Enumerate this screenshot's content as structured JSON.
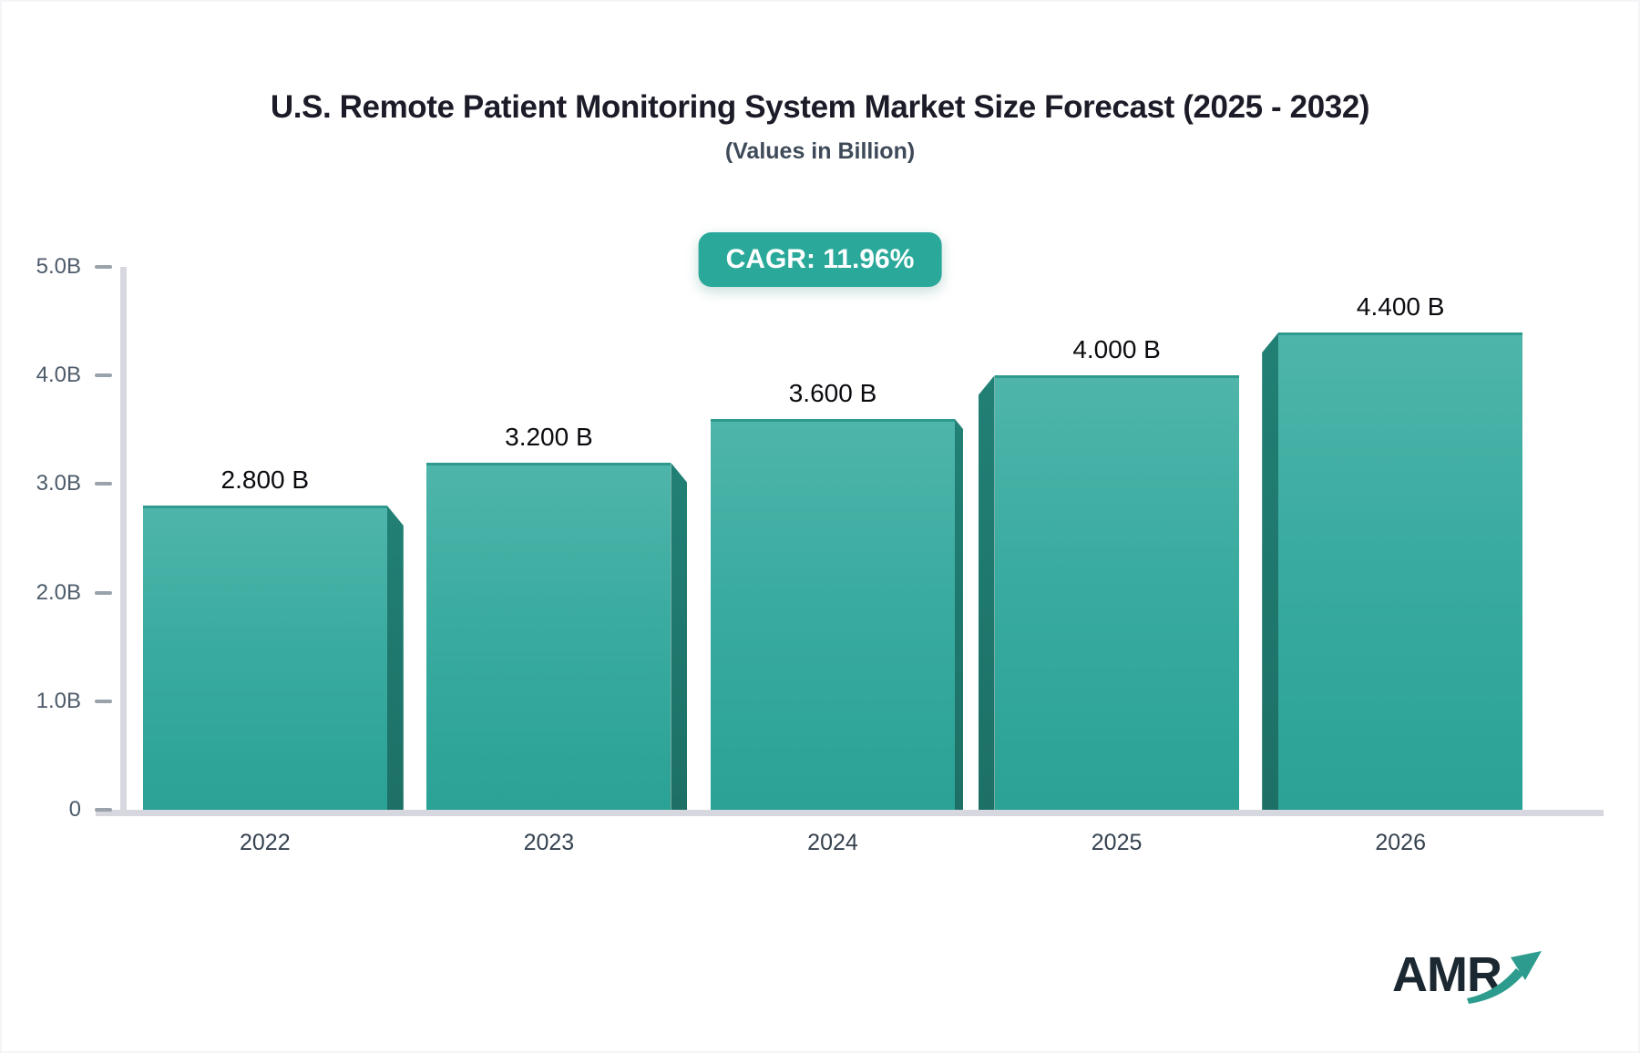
{
  "header": {
    "title": "U.S. Remote Patient Monitoring System Market Size Forecast (2025 - 2032)",
    "subtitle": "(Values in Billion)",
    "cagr_badge": "CAGR: 11.96%"
  },
  "chart_data": {
    "type": "bar",
    "title": "U.S. Remote Patient Monitoring System Market Size Forecast (2025 - 2032)",
    "subtitle": "(Values in Billion)",
    "annotation": "CAGR: 11.96%",
    "categories": [
      "2022",
      "2023",
      "2024",
      "2025",
      "2026"
    ],
    "values": [
      2.8,
      3.2,
      3.6,
      4.0,
      4.4
    ],
    "value_labels": [
      "2.800 B",
      "3.200 B",
      "3.600 B",
      "4.000 B",
      "4.400 B"
    ],
    "xlabel": "",
    "ylabel": "",
    "ylim": [
      0,
      5
    ],
    "yticks": [
      "0",
      "1.0B",
      "2.0B",
      "3.0B",
      "4.0B",
      "5.0B"
    ],
    "grid": false,
    "legend": false,
    "colors": {
      "bar_top": "#4fb5aa",
      "bar_bottom": "#2aa295",
      "bar_edge": "#2e9a8e",
      "bar_side": "#1d7066",
      "axis": "#d7d8df",
      "tick_mark": "#9aa2ab",
      "badge_bg": "#2aa99b",
      "badge_text": "#ffffff",
      "title_text": "#1b1c28",
      "logo_text": "#1b2831",
      "logo_arrow": "#2d9c8e"
    }
  },
  "branding": {
    "logo_text": "AMR"
  }
}
